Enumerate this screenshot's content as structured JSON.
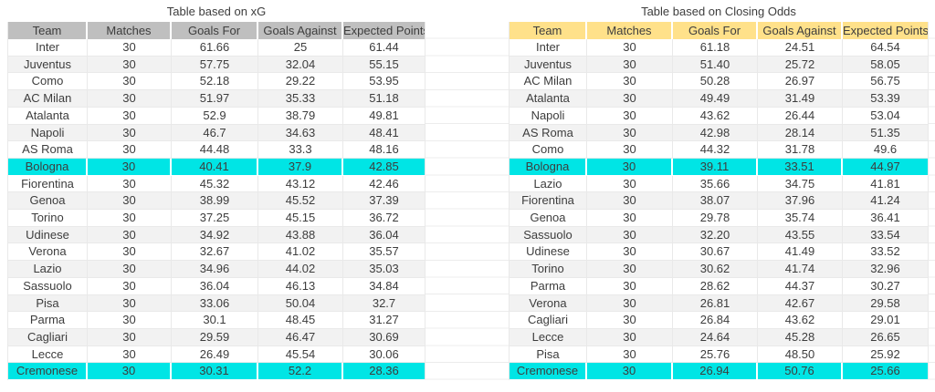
{
  "colors": {
    "left_header_bg": "#bfbfbf",
    "right_header_bg": "#ffe18a",
    "highlight_bg": "#00e5e5",
    "stripe_bg": "#f2f2f2",
    "grid_line": "#e9e9e9",
    "text": "#3d3d3d"
  },
  "left_table": {
    "title": "Table based on xG",
    "columns": [
      "Team",
      "Matches",
      "Goals For",
      "Goals Against",
      "Expected Points"
    ],
    "rows": [
      {
        "cells": [
          "Inter",
          "30",
          "61.66",
          "25",
          "61.44"
        ],
        "highlight": false
      },
      {
        "cells": [
          "Juventus",
          "30",
          "57.75",
          "32.04",
          "55.15"
        ],
        "highlight": false
      },
      {
        "cells": [
          "Como",
          "30",
          "52.18",
          "29.22",
          "53.95"
        ],
        "highlight": false
      },
      {
        "cells": [
          "AC Milan",
          "30",
          "51.97",
          "35.33",
          "51.18"
        ],
        "highlight": false
      },
      {
        "cells": [
          "Atalanta",
          "30",
          "52.9",
          "38.79",
          "49.81"
        ],
        "highlight": false
      },
      {
        "cells": [
          "Napoli",
          "30",
          "46.7",
          "34.63",
          "48.41"
        ],
        "highlight": false
      },
      {
        "cells": [
          "AS Roma",
          "30",
          "44.48",
          "33.3",
          "48.16"
        ],
        "highlight": false
      },
      {
        "cells": [
          "Bologna",
          "30",
          "40.41",
          "37.9",
          "42.85"
        ],
        "highlight": true
      },
      {
        "cells": [
          "Fiorentina",
          "30",
          "45.32",
          "43.12",
          "42.46"
        ],
        "highlight": false
      },
      {
        "cells": [
          "Genoa",
          "30",
          "38.99",
          "45.52",
          "37.39"
        ],
        "highlight": false
      },
      {
        "cells": [
          "Torino",
          "30",
          "37.25",
          "45.15",
          "36.72"
        ],
        "highlight": false
      },
      {
        "cells": [
          "Udinese",
          "30",
          "34.92",
          "43.88",
          "36.04"
        ],
        "highlight": false
      },
      {
        "cells": [
          "Verona",
          "30",
          "32.67",
          "41.02",
          "35.57"
        ],
        "highlight": false
      },
      {
        "cells": [
          "Lazio",
          "30",
          "34.96",
          "44.02",
          "35.03"
        ],
        "highlight": false
      },
      {
        "cells": [
          "Sassuolo",
          "30",
          "36.04",
          "46.13",
          "34.84"
        ],
        "highlight": false
      },
      {
        "cells": [
          "Pisa",
          "30",
          "33.06",
          "50.04",
          "32.7"
        ],
        "highlight": false
      },
      {
        "cells": [
          "Parma",
          "30",
          "30.1",
          "48.45",
          "31.27"
        ],
        "highlight": false
      },
      {
        "cells": [
          "Cagliari",
          "30",
          "29.59",
          "46.47",
          "30.69"
        ],
        "highlight": false
      },
      {
        "cells": [
          "Lecce",
          "30",
          "26.49",
          "45.54",
          "30.06"
        ],
        "highlight": false
      },
      {
        "cells": [
          "Cremonese",
          "30",
          "30.31",
          "52.2",
          "28.36"
        ],
        "highlight": true
      }
    ]
  },
  "right_table": {
    "title": "Table based on Closing Odds",
    "columns": [
      "Team",
      "Matches",
      "Goals For",
      "Goals Against",
      "Expected Points"
    ],
    "rows": [
      {
        "cells": [
          "Inter",
          "30",
          "61.18",
          "24.51",
          "64.54"
        ],
        "highlight": false
      },
      {
        "cells": [
          "Juventus",
          "30",
          "51.40",
          "25.72",
          "58.05"
        ],
        "highlight": false
      },
      {
        "cells": [
          "AC Milan",
          "30",
          "50.28",
          "26.97",
          "56.75"
        ],
        "highlight": false
      },
      {
        "cells": [
          "Atalanta",
          "30",
          "49.49",
          "31.49",
          "53.39"
        ],
        "highlight": false
      },
      {
        "cells": [
          "Napoli",
          "30",
          "43.62",
          "26.44",
          "53.04"
        ],
        "highlight": false
      },
      {
        "cells": [
          "AS Roma",
          "30",
          "42.98",
          "28.14",
          "51.35"
        ],
        "highlight": false
      },
      {
        "cells": [
          "Como",
          "30",
          "44.32",
          "31.78",
          "49.6"
        ],
        "highlight": false
      },
      {
        "cells": [
          "Bologna",
          "30",
          "39.11",
          "33.51",
          "44.97"
        ],
        "highlight": true
      },
      {
        "cells": [
          "Lazio",
          "30",
          "35.66",
          "34.75",
          "41.81"
        ],
        "highlight": false
      },
      {
        "cells": [
          "Fiorentina",
          "30",
          "38.07",
          "37.96",
          "41.24"
        ],
        "highlight": false
      },
      {
        "cells": [
          "Genoa",
          "30",
          "29.78",
          "35.74",
          "36.41"
        ],
        "highlight": false
      },
      {
        "cells": [
          "Sassuolo",
          "30",
          "32.20",
          "43.55",
          "33.54"
        ],
        "highlight": false
      },
      {
        "cells": [
          "Udinese",
          "30",
          "30.67",
          "41.49",
          "33.52"
        ],
        "highlight": false
      },
      {
        "cells": [
          "Torino",
          "30",
          "30.62",
          "41.74",
          "32.96"
        ],
        "highlight": false
      },
      {
        "cells": [
          "Parma",
          "30",
          "28.62",
          "44.37",
          "30.27"
        ],
        "highlight": false
      },
      {
        "cells": [
          "Verona",
          "30",
          "26.81",
          "42.67",
          "29.58"
        ],
        "highlight": false
      },
      {
        "cells": [
          "Cagliari",
          "30",
          "26.84",
          "43.62",
          "29.01"
        ],
        "highlight": false
      },
      {
        "cells": [
          "Lecce",
          "30",
          "24.64",
          "45.28",
          "26.65"
        ],
        "highlight": false
      },
      {
        "cells": [
          "Pisa",
          "30",
          "25.76",
          "48.50",
          "25.92"
        ],
        "highlight": false
      },
      {
        "cells": [
          "Cremonese",
          "30",
          "26.94",
          "50.76",
          "25.66"
        ],
        "highlight": true
      }
    ]
  }
}
